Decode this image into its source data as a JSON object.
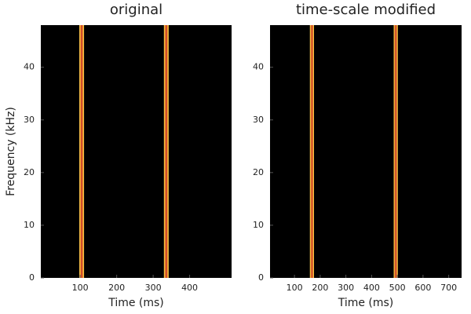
{
  "chart_data": [
    {
      "type": "spectrogram",
      "title": "original",
      "xlabel": "Time (ms)",
      "ylabel": "Frequency (kHz)",
      "xlim": [
        -8,
        515
      ],
      "ylim": [
        0,
        48
      ],
      "xticks": [
        100,
        200,
        300,
        400
      ],
      "yticks": [
        0,
        10,
        20,
        30,
        40
      ],
      "events": [
        104,
        336
      ],
      "event_width": 13,
      "background": "#000000",
      "color": "#f08a1c",
      "grid": false
    },
    {
      "type": "spectrogram",
      "title": "time-scale modified",
      "xlabel": "Time (ms)",
      "xlim": [
        5,
        750
      ],
      "ylim": [
        0,
        48
      ],
      "xticks": [
        100,
        200,
        300,
        400,
        500,
        600,
        700
      ],
      "yticks": [
        0,
        10,
        20,
        30,
        40
      ],
      "events": [
        168,
        494
      ],
      "event_width": 16,
      "background": "#000000",
      "color": "#f08a1c",
      "grid": false
    }
  ]
}
